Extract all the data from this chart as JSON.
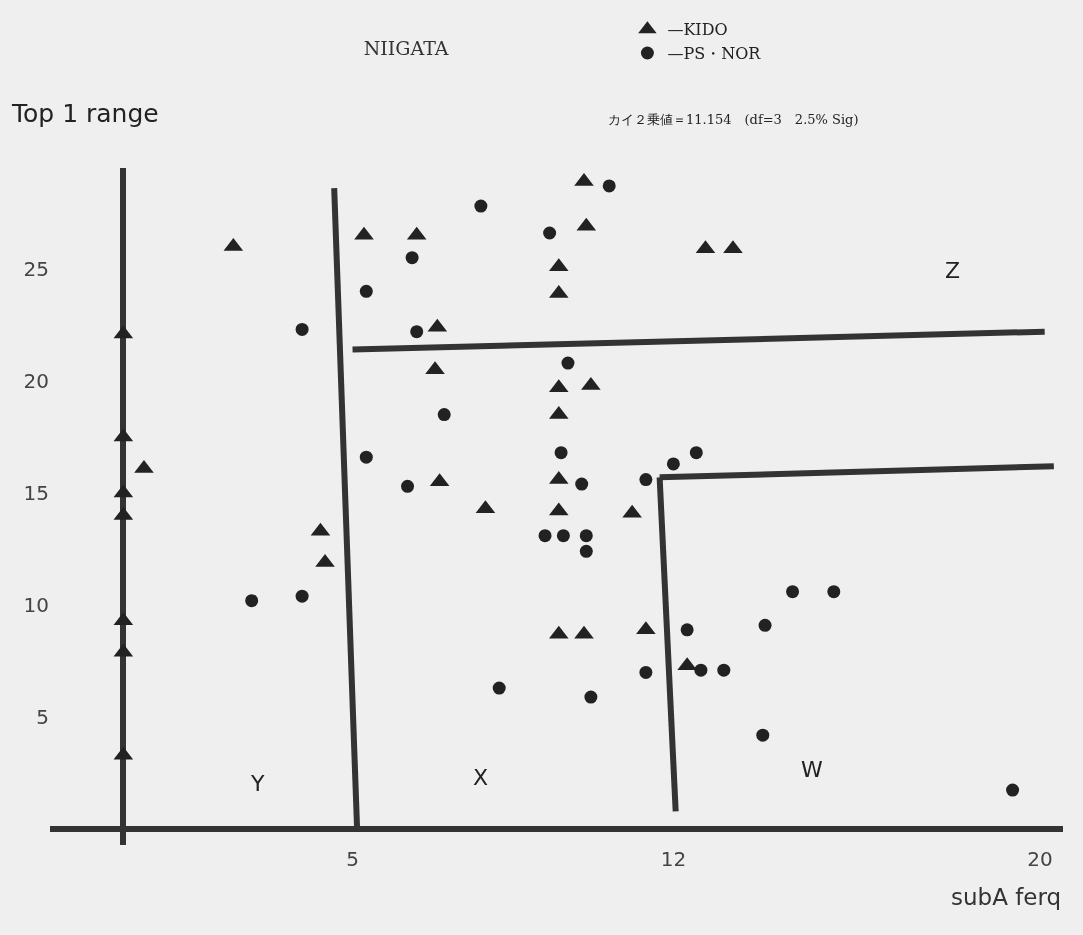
{
  "chart_data": {
    "type": "scatter",
    "title": "NIIGATA",
    "xlabel": "subA ferq",
    "ylabel": "Top 1 range",
    "annotations": [
      "カイ２乗値＝11.154　(df=3　2.5% Sig)",
      "Y",
      "X",
      "W",
      "Z"
    ],
    "xlim": [
      -1.6,
      20.5
    ],
    "xticks": [
      5,
      12,
      20
    ],
    "ylim": [
      -0.7,
      29.5
    ],
    "yticks": [
      5,
      10,
      15,
      20,
      25
    ],
    "grid": false,
    "legend": "top right",
    "series": [
      {
        "name": "—KIDO",
        "color": "#222222",
        "marker": "triangle",
        "x": [
          0,
          0,
          0,
          0,
          0,
          0,
          0,
          0.45,
          2.4,
          5.25,
          6.4,
          6.85,
          6.8,
          6.9,
          7.9,
          4.3,
          4.4,
          10.05,
          10.1,
          9.5,
          9.5,
          9.5,
          10.2,
          9.5,
          9.5,
          9.5,
          11.1,
          9.5,
          10.05,
          11.4,
          12.3,
          12.7,
          13.3
        ],
        "values": [
          22.1,
          17.5,
          15,
          14,
          9.3,
          7.9,
          3.3,
          16.1,
          26,
          26.5,
          26.5,
          22.4,
          20.5,
          15.5,
          14.3,
          13.3,
          11.9,
          28.9,
          26.9,
          25.1,
          23.9,
          19.7,
          19.8,
          18.5,
          15.6,
          14.2,
          14.1,
          8.7,
          8.7,
          8.9,
          7.3,
          25.9,
          25.9
        ]
      },
      {
        "name": "—PS・NOR",
        "color": "#222222",
        "marker": "circle",
        "x": [
          3.9,
          2.8,
          3.9,
          5.3,
          5.3,
          6.3,
          6.4,
          7,
          6.2,
          7.8,
          9.3,
          10.6,
          9.7,
          9.55,
          10,
          9.2,
          9.6,
          10.1,
          10.1,
          11.4,
          12,
          12.5,
          8.2,
          10.2,
          11.4,
          12.3,
          12.6,
          13.1,
          14,
          14.6,
          15.5,
          13.95,
          19.4
        ],
        "values": [
          22.3,
          10.2,
          10.4,
          16.6,
          24,
          25.5,
          22.2,
          18.5,
          15.3,
          27.8,
          26.6,
          28.7,
          20.8,
          16.8,
          15.4,
          13.1,
          13.1,
          13.1,
          12.4,
          15.6,
          16.3,
          16.8,
          6.3,
          5.9,
          7,
          8.9,
          7.1,
          7.1,
          9.1,
          10.6,
          10.6,
          4.2,
          1.75
        ]
      },
      {
        "type": "line",
        "color": "#333333",
        "marker": "none",
        "x": [
          4.6,
          5.1,
          null,
          5,
          20.1
        ],
        "values": [
          28.6,
          0,
          null,
          21.4,
          22.2
        ]
      },
      {
        "type": "line",
        "color": "#333333",
        "marker": "none",
        "x": [
          11.7,
          12.05,
          null,
          11.7,
          20.3
        ],
        "values": [
          15.7,
          0.8,
          null,
          15.7,
          16.2
        ]
      }
    ]
  }
}
